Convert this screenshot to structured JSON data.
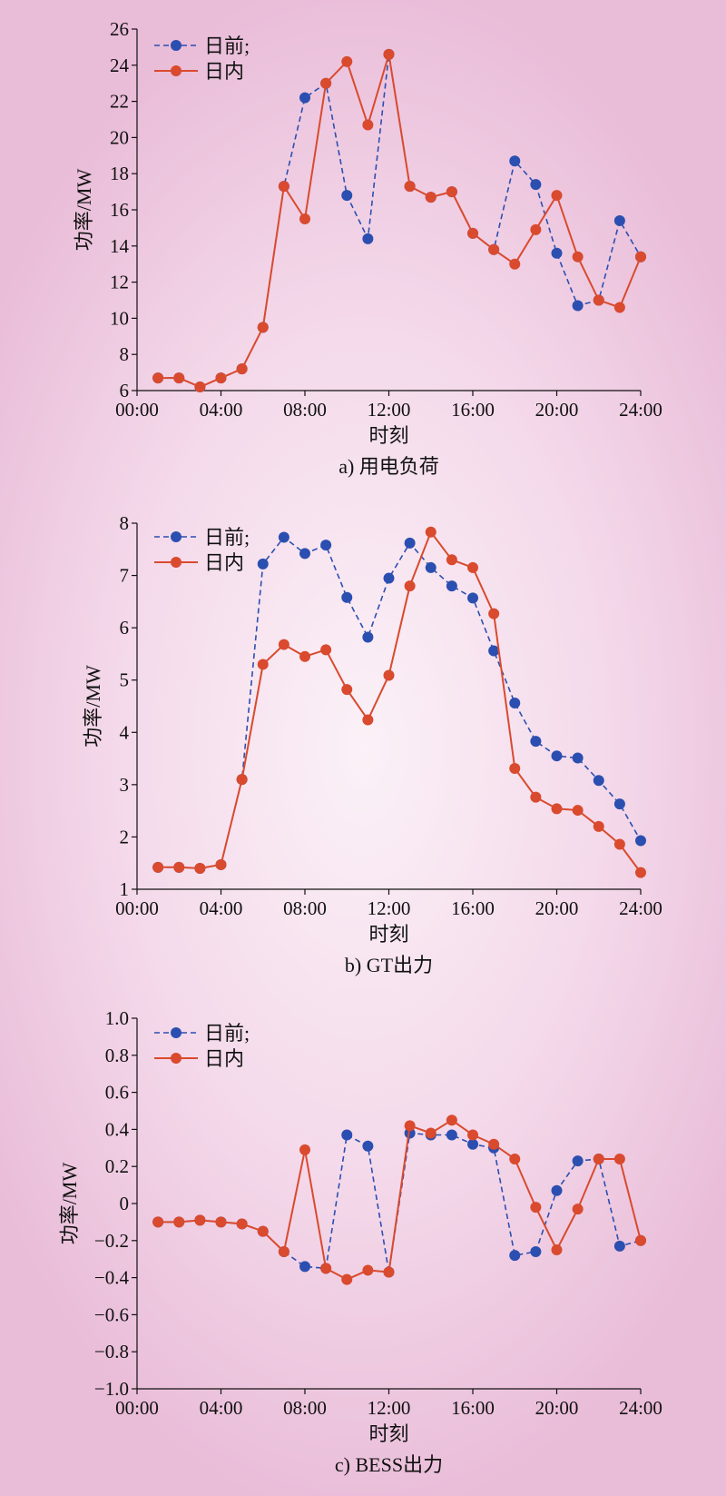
{
  "chart_data": [
    {
      "type": "line",
      "caption": "a) 用电负荷",
      "xlabel": "时刻",
      "ylabel": "功率/MW",
      "x_ticks": [
        "00:00",
        "04:00",
        "08:00",
        "12:00",
        "16:00",
        "20:00",
        "24:00"
      ],
      "xlim": [
        0,
        24
      ],
      "ylim": [
        6,
        26
      ],
      "y_ticks": [
        6,
        8,
        10,
        12,
        14,
        16,
        18,
        20,
        22,
        24,
        26
      ],
      "y_tick_labels": [
        "6",
        "8",
        "10",
        "12",
        "14",
        "16",
        "18",
        "20",
        "22",
        "24",
        "26"
      ],
      "legend_position": "top-left",
      "x": [
        1,
        2,
        3,
        4,
        5,
        6,
        7,
        8,
        9,
        10,
        11,
        12,
        13,
        14,
        15,
        16,
        17,
        18,
        19,
        20,
        21,
        22,
        23,
        24
      ],
      "series": [
        {
          "name": "日前;",
          "color": "#2b4fb0",
          "style": "dashed",
          "values": [
            6.7,
            6.7,
            6.2,
            6.7,
            7.2,
            9.5,
            17.3,
            22.2,
            23.0,
            16.8,
            14.4,
            24.6,
            17.3,
            16.7,
            17.0,
            14.7,
            13.8,
            18.7,
            17.4,
            13.6,
            10.7,
            11.0,
            15.4,
            13.4
          ]
        },
        {
          "name": "日内",
          "color": "#d94a2e",
          "style": "solid",
          "values": [
            6.7,
            6.7,
            6.2,
            6.7,
            7.2,
            9.5,
            17.3,
            15.5,
            23.0,
            24.2,
            20.7,
            24.6,
            17.3,
            16.7,
            17.0,
            14.7,
            13.8,
            13.0,
            14.9,
            16.8,
            13.4,
            11.0,
            10.6,
            13.4
          ]
        }
      ]
    },
    {
      "type": "line",
      "caption": "b) GT出力",
      "xlabel": "时刻",
      "ylabel": "功率/MW",
      "x_ticks": [
        "00:00",
        "04:00",
        "08:00",
        "12:00",
        "16:00",
        "20:00",
        "24:00"
      ],
      "xlim": [
        0,
        24
      ],
      "ylim": [
        1,
        8
      ],
      "y_ticks": [
        1,
        2,
        3,
        4,
        5,
        6,
        7,
        8
      ],
      "y_tick_labels": [
        "1",
        "2",
        "3",
        "4",
        "5",
        "6",
        "7",
        "8"
      ],
      "legend_position": "top-left",
      "x": [
        1,
        2,
        3,
        4,
        5,
        6,
        7,
        8,
        9,
        10,
        11,
        12,
        13,
        14,
        15,
        16,
        17,
        18,
        19,
        20,
        21,
        22,
        23,
        24
      ],
      "series": [
        {
          "name": "日前;",
          "color": "#2b4fb0",
          "style": "dashed",
          "values": [
            1.42,
            1.42,
            1.4,
            1.47,
            3.1,
            7.22,
            7.73,
            7.42,
            7.58,
            6.58,
            5.82,
            6.95,
            7.62,
            7.15,
            6.8,
            6.57,
            5.56,
            4.56,
            3.83,
            3.55,
            3.51,
            3.08,
            2.63,
            1.93
          ]
        },
        {
          "name": "日内",
          "color": "#d94a2e",
          "style": "solid",
          "values": [
            1.42,
            1.42,
            1.4,
            1.47,
            3.1,
            5.3,
            5.68,
            5.45,
            5.58,
            4.82,
            4.24,
            5.09,
            6.8,
            7.83,
            7.3,
            7.15,
            6.27,
            3.31,
            2.76,
            2.54,
            2.51,
            2.2,
            1.86,
            1.32
          ]
        }
      ]
    },
    {
      "type": "line",
      "caption": "c) BESS出力",
      "xlabel": "时刻",
      "ylabel": "功率/MW",
      "x_ticks": [
        "00:00",
        "04:00",
        "08:00",
        "12:00",
        "16:00",
        "20:00",
        "24:00"
      ],
      "xlim": [
        0,
        24
      ],
      "ylim": [
        -1.0,
        1.0
      ],
      "y_ticks": [
        -1.0,
        -0.8,
        -0.6,
        -0.4,
        -0.2,
        0,
        0.2,
        0.4,
        0.6,
        0.8,
        1.0
      ],
      "y_tick_labels": [
        "−1.0",
        "−0.8",
        "−0.6",
        "−0.4",
        "−0.2",
        "0",
        "0.2",
        "0.4",
        "0.6",
        "0.8",
        "1.0"
      ],
      "legend_position": "top-left",
      "x": [
        1,
        2,
        3,
        4,
        5,
        6,
        7,
        8,
        9,
        10,
        11,
        12,
        13,
        14,
        15,
        16,
        17,
        18,
        19,
        20,
        21,
        22,
        23,
        24
      ],
      "series": [
        {
          "name": "日前;",
          "color": "#2b4fb0",
          "style": "dashed",
          "values": [
            -0.1,
            -0.1,
            -0.09,
            -0.1,
            -0.11,
            -0.15,
            -0.26,
            -0.34,
            -0.35,
            0.37,
            0.31,
            -0.37,
            0.38,
            0.37,
            0.37,
            0.32,
            0.3,
            -0.28,
            -0.26,
            0.07,
            0.23,
            0.24,
            -0.23,
            -0.2
          ]
        },
        {
          "name": "日内",
          "color": "#d94a2e",
          "style": "solid",
          "values": [
            -0.1,
            -0.1,
            -0.09,
            -0.1,
            -0.11,
            -0.15,
            -0.26,
            0.29,
            -0.35,
            -0.41,
            -0.36,
            -0.37,
            0.42,
            0.38,
            0.45,
            0.37,
            0.32,
            0.24,
            -0.02,
            -0.25,
            -0.03,
            0.24,
            0.24,
            -0.2
          ]
        }
      ]
    }
  ]
}
